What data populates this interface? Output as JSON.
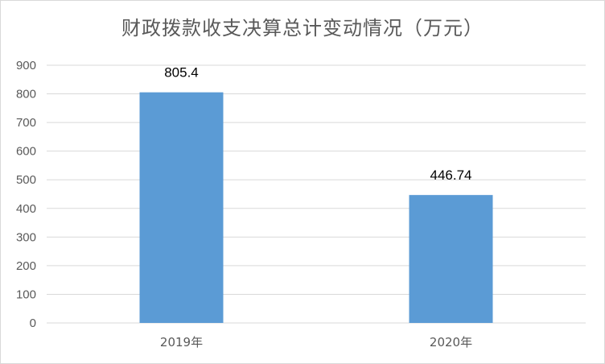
{
  "chart_data": {
    "type": "bar",
    "title": "财政拨款收支决算总计变动情况（万元）",
    "categories": [
      "2019年",
      "2020年"
    ],
    "values": [
      805.4,
      446.74
    ],
    "data_labels": [
      "805.4",
      "446.74"
    ],
    "ylim": [
      0,
      900
    ],
    "yticks": [
      0,
      100,
      200,
      300,
      400,
      500,
      600,
      700,
      800,
      900
    ],
    "xlabel": "",
    "ylabel": "",
    "grid": true,
    "legend": "none",
    "bar_color": "#5b9bd5",
    "grid_color": "#d9d9d9"
  }
}
